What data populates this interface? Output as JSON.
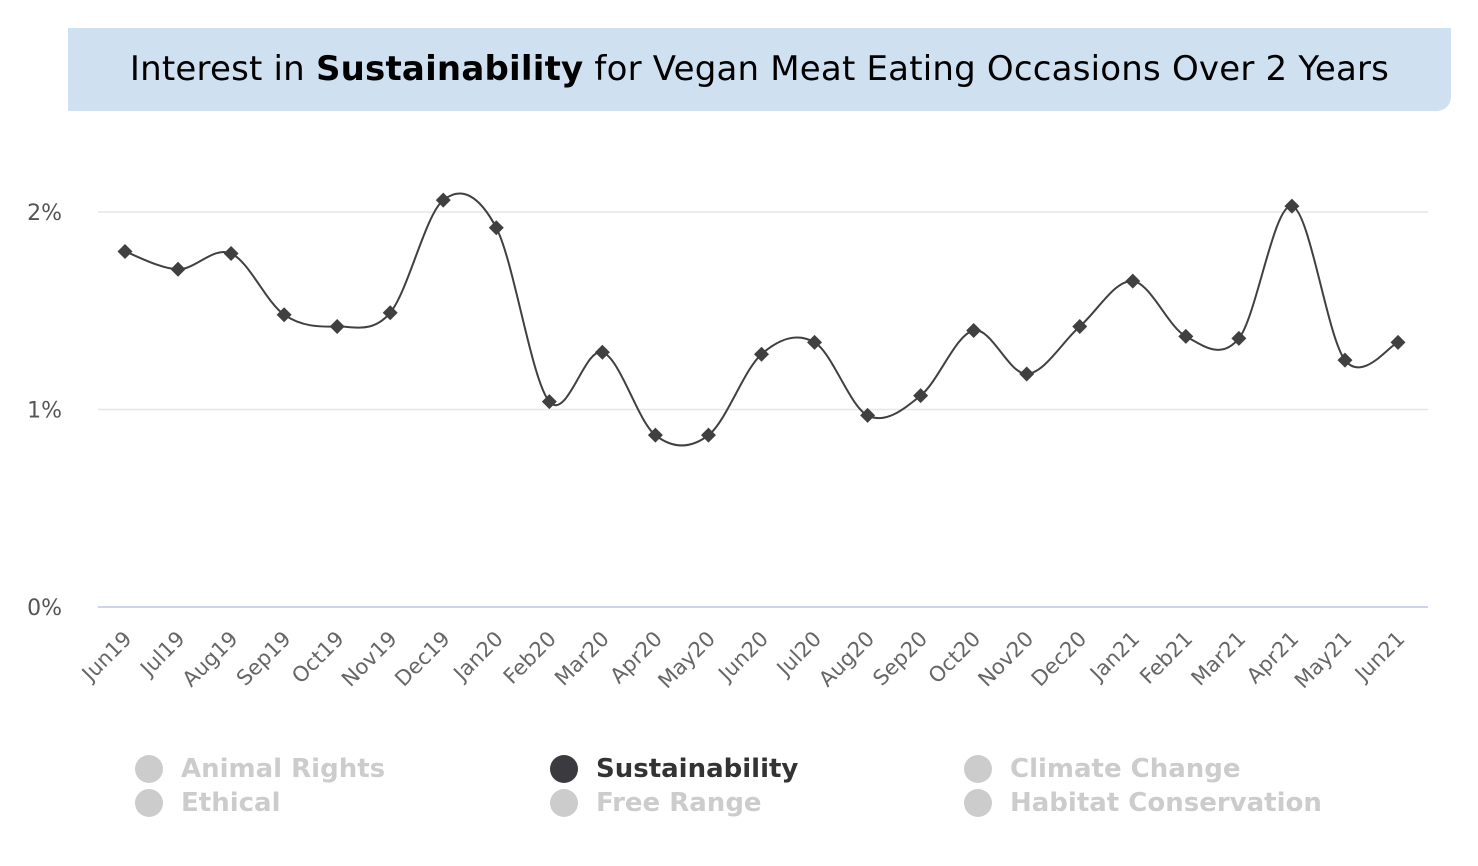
{
  "title": {
    "prefix": "Interest in ",
    "highlight": "Sustainability",
    "suffix": " for Vegan Meat Eating Occasions Over 2 Years"
  },
  "chart_data": {
    "type": "line",
    "title": "Interest in Sustainability for Vegan Meat Eating Occasions Over 2 Years",
    "xlabel": "",
    "ylabel": "",
    "ylim": [
      0,
      2
    ],
    "yticks": [
      "0%",
      "1%",
      "2%"
    ],
    "grid": true,
    "legend_position": "bottom",
    "categories": [
      "Jun19",
      "Jul19",
      "Aug19",
      "Sep19",
      "Oct19",
      "Nov19",
      "Dec19",
      "Jan20",
      "Feb20",
      "Mar20",
      "Apr20",
      "May20",
      "Jun20",
      "Jul20",
      "Aug20",
      "Sep20",
      "Oct20",
      "Nov20",
      "Dec20",
      "Jan21",
      "Feb21",
      "Mar21",
      "Apr21",
      "May21",
      "Jun21"
    ],
    "series": [
      {
        "name": "Sustainability",
        "color": "#404040",
        "values": [
          1.8,
          1.71,
          1.79,
          1.48,
          1.42,
          1.49,
          2.06,
          1.92,
          1.04,
          1.29,
          0.87,
          0.87,
          1.28,
          1.34,
          0.97,
          1.07,
          1.4,
          1.18,
          1.42,
          1.65,
          1.37,
          1.36,
          2.03,
          1.25,
          1.34
        ]
      }
    ]
  },
  "legend": {
    "items": [
      {
        "label": "Animal Rights",
        "active": false,
        "color": "#cccccc"
      },
      {
        "label": "Ethical",
        "active": false,
        "color": "#cccccc"
      },
      {
        "label": "Sustainability",
        "active": true,
        "color": "#3a3a3f"
      },
      {
        "label": "Free Range",
        "active": false,
        "color": "#cccccc"
      },
      {
        "label": "Climate Change",
        "active": false,
        "color": "#cccccc"
      },
      {
        "label": "Habitat Conservation",
        "active": false,
        "color": "#cccccc"
      }
    ]
  },
  "colors": {
    "banner": "#cfe0f1",
    "gridline": "#e6e6e6",
    "baseline": "#ccd6eb",
    "inactive_text": "#cccccc",
    "active_text": "#333333"
  }
}
